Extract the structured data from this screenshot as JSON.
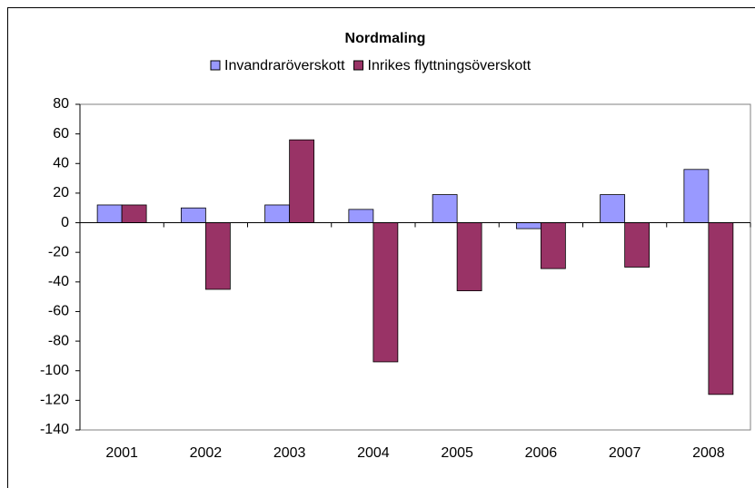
{
  "chart_data": {
    "type": "bar",
    "title": "Nordmaling",
    "categories": [
      "2001",
      "2002",
      "2003",
      "2004",
      "2005",
      "2006",
      "2007",
      "2008"
    ],
    "series": [
      {
        "name": "Invandraröverskott",
        "color": "#9999ff",
        "values": [
          12,
          10,
          12,
          9,
          19,
          -4,
          19,
          36
        ]
      },
      {
        "name": "Inrikes flyttningsöverskott",
        "color": "#993366",
        "values": [
          12,
          -45,
          56,
          -94,
          -46,
          -31,
          -30,
          -116
        ]
      }
    ],
    "ylim": [
      -140,
      80
    ],
    "yticks": [
      -140,
      -120,
      -100,
      -80,
      -60,
      -40,
      -20,
      0,
      20,
      40,
      60,
      80
    ],
    "grid": false
  }
}
